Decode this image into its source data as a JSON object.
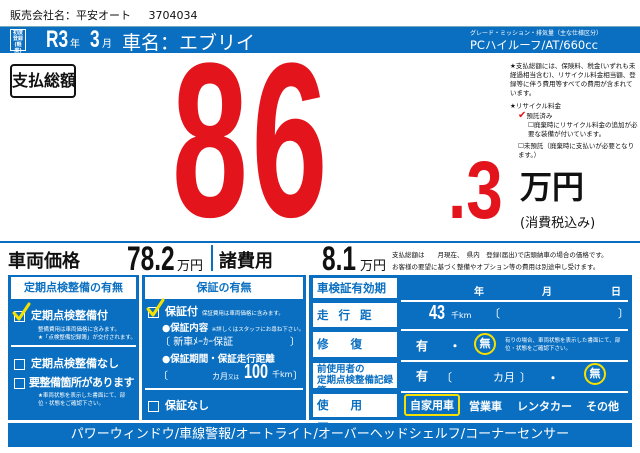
{
  "dealer": {
    "label": "販売会社名：平安オート",
    "code": "3704034"
  },
  "header": {
    "first_reg_label": "初度登録(軽度)",
    "era_year": "R3",
    "year_unit": "年",
    "month": "3",
    "month_unit": "月",
    "car_name": "車名：エブリイ",
    "grade_label": "グレード・ミッション・排気量（主な仕様区分）",
    "grade_value": "PCハイルーフ/AT/660cc"
  },
  "total": {
    "label": "支払総額",
    "int": "86",
    "dec": ".3",
    "unit": "万円",
    "tax": "(消費税込み)",
    "color": "#e3141c"
  },
  "notes": {
    "text1": "★支払総額には、保険料、税金(いずれも未経過相当含む)、リサイクル料金相当額、登録等に伴う費用等すべての費用が含まれています。",
    "recycle_title": "★リサイクル料金",
    "recycle_deposited": "預託済み",
    "recycle_extra": "廃棄時にリサイクル料金の追加が必要な装備が付いています。",
    "recycle_not": "未預託（廃棄時に支払いが必要となります。）"
  },
  "prices": {
    "vehicle_label": "車両価格",
    "vehicle_value": "78.2",
    "vehicle_unit": "万円",
    "fees_label": "諸費用",
    "fees_value": "8.1",
    "fees_unit": "万円",
    "note1": "支払総額は　　月現在、　県内　登録(届出)で店頭納車の場合の価格です。",
    "note2": "お客様の要望に基づく整備やオプション等の費用は別途申し受けます。"
  },
  "inspection": {
    "title": "定期点検整備の有無",
    "with": "定期点検整備付",
    "with_note1": "整備費用は車両価格に含みます。",
    "with_note2": "★「点検整備記録簿」が交付されます。",
    "without": "定期点検整備なし",
    "needs": "要整備箇所があります",
    "needs_note": "★車両状態を表示した書面にて、部位・状態をご確認下さい。",
    "checked": "with"
  },
  "warranty": {
    "title": "保証の有無",
    "with": "保証付",
    "with_note": "保証費用は車両価格に含みます。",
    "content_label": "●保証内容",
    "content_note": "※詳しくはスタッフにお尋ね下さい。",
    "content_value": "新車ﾒｰｶｰ保証",
    "period_label": "●保証期間・保証走行距離",
    "months_unit": "カ月",
    "or": "又は",
    "distance": "100",
    "distance_unit": "千km",
    "without": "保証なし",
    "checked": "with"
  },
  "details": {
    "inspection_expiry_label": "車検証有効期限",
    "year": "年",
    "month": "月",
    "day": "日",
    "mileage_label": "走行距離",
    "mileage_value": "43",
    "mileage_unit": "千km",
    "repair_label": "修復歴",
    "yes": "有",
    "dot": "・",
    "none": "無",
    "repair_note": "有りの場合、車両状態を表示した書面にて、部位・状態をご確認下さい。",
    "record_label1": "前使用者の",
    "record_label2": "定期点検整備記録簿",
    "record_months": "カ月",
    "usage_label": "使用歴",
    "usage_options": [
      "自家用車",
      "営業車",
      "レンタカー",
      "その他"
    ],
    "usage_selected": "自家用車",
    "repair_selected": "無",
    "record_selected": "無"
  },
  "equipment": "パワーウィンドウ/車線警報/オートライト/オーバーヘッドシェルフ/コーナーセンサー"
}
